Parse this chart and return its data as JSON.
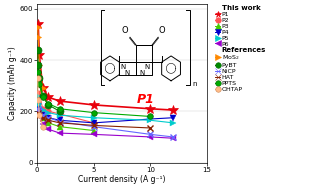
{
  "xlabel": "Current density (A g⁻¹)",
  "ylabel": "Capacity (mAh g⁻¹)",
  "xlim": [
    0,
    15
  ],
  "ylim": [
    0,
    620
  ],
  "yticks": [
    0,
    200,
    400,
    600
  ],
  "xticks": [
    0,
    5,
    10,
    15
  ],
  "series": {
    "P1": {
      "x": [
        0.1,
        0.2,
        0.5,
        1.0,
        2.0,
        5.0,
        10.0,
        12.0
      ],
      "y": [
        540,
        420,
        290,
        255,
        240,
        225,
        210,
        205
      ],
      "color": "#e8000b",
      "marker": "*",
      "markersize": 7,
      "linewidth": 1.2,
      "group": "This work"
    },
    "P2": {
      "x": [
        0.1,
        0.2,
        0.5,
        1.0,
        2.0,
        5.0
      ],
      "y": [
        270,
        265,
        210,
        200,
        190,
        155
      ],
      "color": "#ff5555",
      "marker": "o",
      "markersize": 4,
      "linewidth": 0.8,
      "group": "This work"
    },
    "P3": {
      "x": [
        0.1,
        0.2,
        0.5,
        1.0,
        2.0,
        5.0
      ],
      "y": [
        230,
        210,
        175,
        155,
        140,
        125
      ],
      "color": "#44cc00",
      "marker": "^",
      "markersize": 4,
      "linewidth": 0.8,
      "group": "This work"
    },
    "P4": {
      "x": [
        0.1,
        0.2,
        0.5,
        1.0,
        2.0,
        5.0,
        10.0,
        12.0
      ],
      "y": [
        220,
        205,
        185,
        175,
        165,
        155,
        170,
        175
      ],
      "color": "#0000cc",
      "marker": "v",
      "markersize": 4,
      "linewidth": 0.8,
      "group": "This work"
    },
    "P5": {
      "x": [
        0.1,
        0.2,
        0.5,
        1.0,
        2.0,
        5.0,
        10.0,
        12.0
      ],
      "y": [
        260,
        230,
        205,
        195,
        185,
        175,
        165,
        155
      ],
      "color": "#00cccc",
      "marker": ">",
      "markersize": 4,
      "linewidth": 0.8,
      "group": "This work"
    },
    "P6": {
      "x": [
        0.1,
        0.2,
        0.5,
        1.0,
        2.0,
        5.0,
        10.0,
        12.0
      ],
      "y": [
        200,
        180,
        150,
        130,
        115,
        110,
        100,
        95
      ],
      "color": "#9900cc",
      "marker": "<",
      "markersize": 4,
      "linewidth": 0.8,
      "group": "This work"
    },
    "MoS2": {
      "x": [
        0.05,
        0.1,
        0.2,
        0.5
      ],
      "y": [
        530,
        490,
        380,
        290
      ],
      "color": "#ff8800",
      "marker": ">",
      "markersize": 5,
      "linewidth": 0.8,
      "group": "References",
      "label": "MoS$_2$"
    },
    "PyBT": {
      "x": [
        0.05,
        0.1,
        0.2,
        0.5,
        1.0,
        2.0
      ],
      "y": [
        440,
        380,
        330,
        260,
        225,
        200
      ],
      "color": "#008800",
      "marker": "o",
      "markersize": 5,
      "linewidth": 0.8,
      "group": "References",
      "label": "PyBT"
    },
    "NiCP": {
      "x": [
        0.1,
        0.2,
        0.5,
        1.0,
        2.0,
        5.0,
        10.0,
        12.0
      ],
      "y": [
        210,
        200,
        185,
        175,
        160,
        140,
        110,
        100
      ],
      "color": "#6666ff",
      "marker": "x",
      "markersize": 4,
      "linewidth": 0.8,
      "group": "References",
      "label": "NiCP"
    },
    "HAT": {
      "x": [
        0.1,
        0.2,
        0.5,
        1.0,
        2.0,
        5.0,
        10.0
      ],
      "y": [
        195,
        185,
        175,
        165,
        155,
        145,
        135
      ],
      "color": "#882200",
      "marker": "x",
      "markersize": 4,
      "linewidth": 0.8,
      "group": "References",
      "label": "HAT"
    },
    "PPTS": {
      "x": [
        0.1,
        0.2,
        0.5,
        1.0,
        2.0,
        5.0,
        10.0
      ],
      "y": [
        355,
        305,
        255,
        230,
        210,
        195,
        180
      ],
      "color": "#00aa00",
      "marker": "o",
      "markersize": 4,
      "linewidth": 0.8,
      "group": "References",
      "label": "PPTS"
    },
    "OHTAP": {
      "x": [
        0.05,
        0.1,
        0.2,
        0.5
      ],
      "y": [
        330,
        245,
        185,
        140
      ],
      "color": "#ffbb88",
      "marker": "o",
      "markersize": 4,
      "linewidth": 0.8,
      "group": "References",
      "label": "OHTAP"
    }
  },
  "label_fontsize": 5.5,
  "tick_fontsize": 5,
  "legend_fontsize": 4.5,
  "legend_title_fontsize": 5
}
